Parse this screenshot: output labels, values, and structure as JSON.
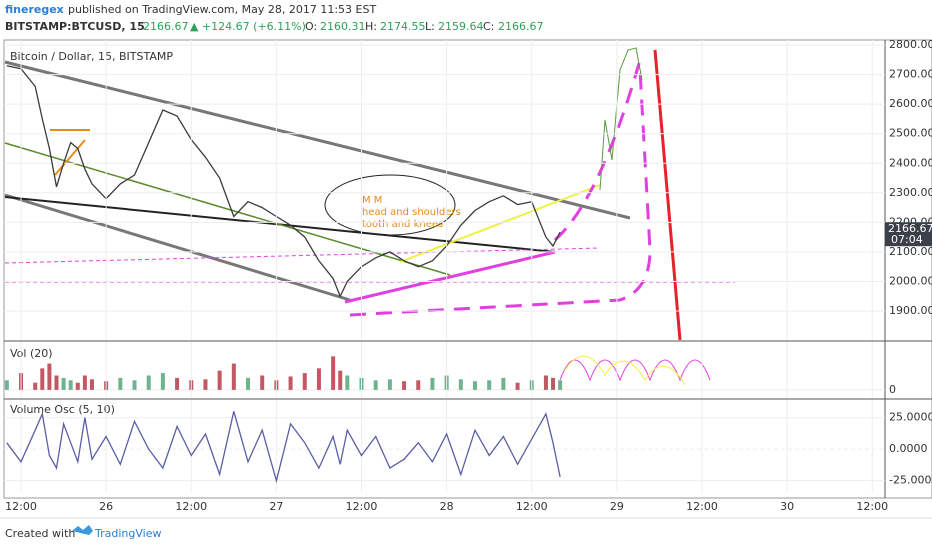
{
  "header": {
    "publisher": "fineregex",
    "published": "published on TradingView.com, May 28, 2017 11:53 EST",
    "symbol": "BITSTAMP:BTCUSD, 15",
    "last": "2166.67",
    "change": "▲ +124.67 (+6.11%)",
    "o_label": "O:",
    "o": "2160.31",
    "h_label": "H:",
    "h": "2174.55",
    "l_label": "L:",
    "l": "2159.64",
    "c_label": "C:",
    "c": "2166.67"
  },
  "chart_data": [
    {
      "type": "line",
      "title": "Bitcoin / Dollar, 15, BITSTAMP",
      "color": "#3b3b3b",
      "x": [
        -2,
        0,
        2,
        3,
        4,
        5,
        6,
        7,
        8,
        9,
        10,
        12,
        14,
        16,
        18,
        20,
        22,
        24,
        26,
        28,
        30,
        32,
        34,
        36,
        38,
        40,
        42,
        44,
        45,
        46,
        48,
        50,
        52,
        54,
        56,
        58,
        60,
        62,
        64,
        66,
        68,
        70,
        72,
        74,
        75,
        76
      ],
      "values": [
        2730,
        2720,
        2660,
        2550,
        2450,
        2320,
        2400,
        2470,
        2450,
        2380,
        2330,
        2280,
        2330,
        2360,
        2470,
        2580,
        2560,
        2480,
        2420,
        2350,
        2220,
        2270,
        2250,
        2220,
        2190,
        2150,
        2070,
        2010,
        1950,
        2000,
        2050,
        2080,
        2100,
        2070,
        2050,
        2070,
        2120,
        2190,
        2240,
        2270,
        2290,
        2260,
        2270,
        2150,
        2120,
        2166.67
      ],
      "last_label": "2166.67",
      "countdown": "07:04",
      "xlim": [
        -2.4,
        121.8
      ],
      "ylim": [
        1802,
        2817
      ],
      "yticks": [
        {
          "value": 1900,
          "label": "1900.00"
        },
        {
          "value": 2000,
          "label": "2000.00"
        },
        {
          "value": 2100,
          "label": "2100.00"
        },
        {
          "value": 2200,
          "label": "2200.00"
        },
        {
          "value": 2300,
          "label": "2300.00"
        },
        {
          "value": 2400,
          "label": "2400.00"
        },
        {
          "value": 2500,
          "label": "2500.00"
        },
        {
          "value": 2600,
          "label": "2600.00"
        },
        {
          "value": 2700,
          "label": "2700.00"
        },
        {
          "value": 2800,
          "label": "2800.00"
        }
      ],
      "annotations": [
        "M M",
        "head and shoulders",
        "tooth and knees"
      ]
    },
    {
      "type": "bar",
      "title": "Vol (20)",
      "up_color": "#53a679",
      "down_color": "#b83a46",
      "x": [
        -2,
        0,
        2,
        3,
        4,
        5,
        6,
        7,
        8,
        9,
        10,
        12,
        14,
        16,
        18,
        20,
        22,
        24,
        26,
        28,
        30,
        32,
        34,
        36,
        38,
        40,
        42,
        44,
        45,
        46,
        48,
        50,
        52,
        54,
        56,
        58,
        60,
        62,
        64,
        66,
        68,
        70,
        72,
        74,
        75,
        76
      ],
      "values": [
        20,
        35,
        15,
        45,
        55,
        30,
        25,
        20,
        15,
        30,
        22,
        18,
        25,
        20,
        30,
        35,
        25,
        20,
        22,
        40,
        55,
        25,
        30,
        20,
        28,
        35,
        45,
        70,
        40,
        30,
        25,
        20,
        22,
        18,
        20,
        25,
        30,
        22,
        18,
        20,
        25,
        15,
        20,
        30,
        25,
        20
      ],
      "xlim": [
        -2.4,
        121.8
      ],
      "ylim": [
        -17,
        100
      ],
      "yticks": [
        0
      ]
    },
    {
      "type": "line",
      "title": "Volume Osc (5, 10)",
      "color": "#5b5ea6",
      "x": [
        -2,
        0,
        2,
        3,
        4,
        5,
        6,
        7,
        8,
        9,
        10,
        12,
        14,
        16,
        18,
        20,
        22,
        24,
        26,
        28,
        30,
        32,
        34,
        36,
        38,
        40,
        42,
        44,
        45,
        46,
        48,
        50,
        52,
        54,
        56,
        58,
        60,
        62,
        64,
        66,
        68,
        70,
        72,
        74,
        75,
        76
      ],
      "values": [
        5,
        -10,
        15,
        28,
        -5,
        -15,
        20,
        5,
        -10,
        25,
        -8,
        10,
        -12,
        22,
        0,
        -15,
        18,
        -5,
        12,
        -20,
        30,
        -10,
        15,
        -25,
        20,
        5,
        -15,
        10,
        -12,
        15,
        -5,
        10,
        -15,
        -8,
        5,
        -10,
        12,
        -20,
        15,
        -5,
        10,
        -12,
        8,
        28,
        5,
        -22
      ],
      "xlim": [
        -2.4,
        121.8
      ],
      "ylim": [
        -34,
        39
      ],
      "yticks": [
        {
          "value": -25,
          "label": "-25.0000"
        },
        {
          "value": 0,
          "label": "0.0000"
        },
        {
          "value": 25,
          "label": "25.0000"
        }
      ],
      "xticks": [
        {
          "value": 0,
          "label": "12:00"
        },
        {
          "value": 12,
          "label": "26"
        },
        {
          "value": 24,
          "label": "12:00"
        },
        {
          "value": 36,
          "label": "27"
        },
        {
          "value": 48,
          "label": "12:00"
        },
        {
          "value": 60,
          "label": "28"
        },
        {
          "value": 72,
          "label": "12:00"
        },
        {
          "value": 84,
          "label": "29"
        },
        {
          "value": 96,
          "label": "12:00"
        },
        {
          "value": 108,
          "label": "30"
        },
        {
          "value": 120,
          "label": "12:00"
        }
      ]
    }
  ],
  "footer": {
    "created": "Created with",
    "brand": "TradingView"
  }
}
